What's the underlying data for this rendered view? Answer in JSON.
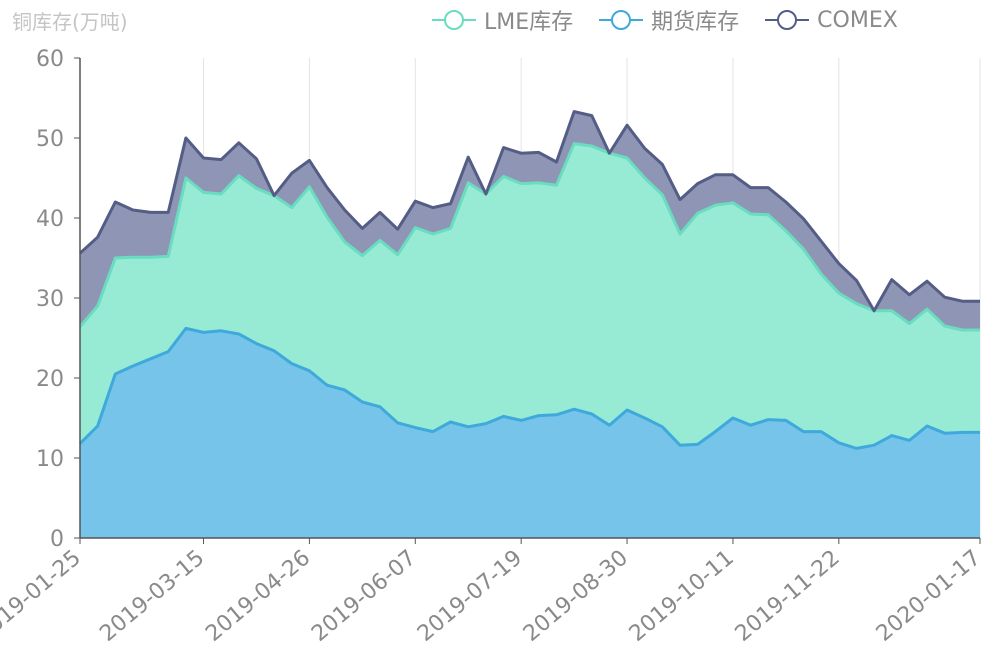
{
  "chart_data": {
    "type": "area",
    "stacked": true,
    "ylabel": "铜库存(万吨)",
    "ylim": [
      0,
      60
    ],
    "yticks": [
      0,
      10,
      20,
      30,
      40,
      50,
      60
    ],
    "x_tick_labels": [
      "2019-01-25",
      "2019-03-15",
      "2019-04-26",
      "2019-06-07",
      "2019-07-19",
      "2019-08-30",
      "2019-10-11",
      "2019-11-22",
      "2020-01-17"
    ],
    "x": [
      "2019-01-25",
      "2019-02-01",
      "2019-02-08",
      "2019-02-15",
      "2019-02-22",
      "2019-03-01",
      "2019-03-08",
      "2019-03-15",
      "2019-03-22",
      "2019-03-29",
      "2019-04-05",
      "2019-04-12",
      "2019-04-19",
      "2019-04-26",
      "2019-05-03",
      "2019-05-10",
      "2019-05-17",
      "2019-05-24",
      "2019-05-31",
      "2019-06-07",
      "2019-06-14",
      "2019-06-21",
      "2019-06-28",
      "2019-07-05",
      "2019-07-12",
      "2019-07-19",
      "2019-07-26",
      "2019-08-02",
      "2019-08-09",
      "2019-08-16",
      "2019-08-23",
      "2019-08-30",
      "2019-09-06",
      "2019-09-13",
      "2019-09-20",
      "2019-09-27",
      "2019-10-04",
      "2019-10-11",
      "2019-10-18",
      "2019-10-25",
      "2019-11-01",
      "2019-11-08",
      "2019-11-15",
      "2019-11-22",
      "2019-11-29",
      "2019-12-06",
      "2019-12-13",
      "2019-12-20",
      "2019-12-27",
      "2020-01-03",
      "2020-01-10",
      "2020-01-17"
    ],
    "series": [
      {
        "name": "期货库存",
        "color": "#3fa9dc",
        "fill": "#76c4ea",
        "values": [
          11.8,
          14.0,
          20.5,
          21.5,
          22.4,
          23.3,
          26.2,
          25.7,
          25.9,
          25.5,
          24.3,
          23.4,
          21.8,
          20.9,
          19.1,
          18.5,
          17.0,
          16.4,
          14.4,
          13.8,
          13.3,
          14.5,
          13.9,
          14.3,
          15.2,
          14.7,
          15.3,
          15.4,
          16.1,
          15.5,
          14.1,
          16.0,
          15.0,
          13.9,
          11.6,
          11.7,
          13.3,
          15.0,
          14.1,
          14.8,
          14.7,
          13.3,
          13.3,
          11.9,
          11.2,
          11.6,
          12.8,
          12.2,
          14.0,
          13.1,
          13.2,
          13.2
        ]
      },
      {
        "name": "LME库存",
        "color": "#6adcc0",
        "fill": "#97ebd4",
        "values": [
          14.6,
          15.0,
          14.5,
          13.6,
          12.7,
          11.9,
          18.8,
          17.5,
          17.1,
          19.8,
          19.4,
          19.4,
          19.5,
          23.0,
          21.0,
          18.5,
          18.3,
          20.8,
          21.0,
          25.0,
          24.7,
          24.2,
          30.5,
          28.7,
          30.0,
          29.6,
          29.1,
          28.7,
          33.2,
          33.5,
          34.0,
          31.5,
          30.0,
          29.0,
          26.4,
          28.9,
          28.3,
          26.9,
          26.4,
          25.6,
          23.7,
          22.8,
          19.7,
          18.7,
          18.1,
          16.8,
          15.6,
          14.6,
          14.6,
          13.4,
          12.8,
          12.8
        ]
      },
      {
        "name": "COMEX",
        "color": "#545d85",
        "fill": "#8f95b5",
        "values": [
          9.2,
          8.6,
          7.0,
          5.9,
          5.6,
          5.5,
          5.0,
          4.3,
          4.3,
          4.1,
          3.7,
          0.0,
          4.3,
          3.3,
          3.7,
          4.0,
          3.4,
          3.5,
          3.2,
          3.3,
          3.3,
          3.1,
          3.2,
          0.0,
          3.6,
          3.8,
          3.8,
          2.9,
          4.0,
          3.8,
          0.0,
          4.1,
          3.7,
          3.8,
          4.3,
          3.7,
          3.8,
          3.5,
          3.3,
          3.4,
          3.6,
          3.8,
          4.1,
          3.7,
          2.9,
          0.0,
          3.9,
          3.6,
          3.5,
          3.6,
          3.6,
          3.6
        ]
      }
    ],
    "legend": [
      "LME库存",
      "期货库存",
      "COMEX"
    ],
    "legend_position": "top",
    "grid": "vertical"
  }
}
